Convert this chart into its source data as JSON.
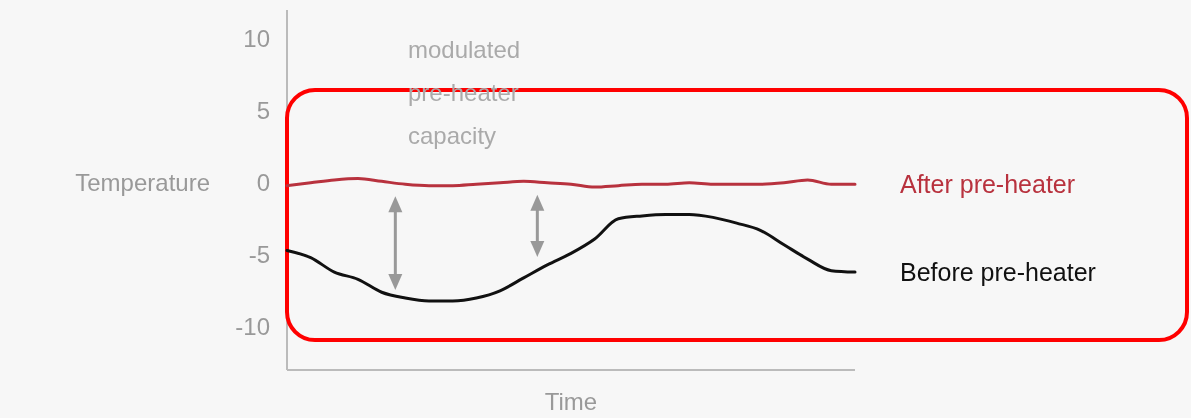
{
  "chart_data": {
    "type": "line",
    "xlabel": "Time",
    "ylabel": "Temperature",
    "annotations": [
      "modulated pre-heater capacity"
    ],
    "categories": [
      null,
      null,
      null,
      null,
      null,
      null,
      null,
      null,
      null,
      null,
      null,
      null,
      null,
      null,
      null,
      null,
      null,
      null,
      null,
      null,
      null,
      null,
      null,
      null,
      null
    ],
    "ylim": [
      -13,
      12
    ],
    "yticks": [
      -10,
      -5,
      0,
      5,
      10
    ],
    "grid": false,
    "legend": false,
    "marker": "none",
    "line_style": "solid",
    "series": [
      {
        "name": "After pre-heater",
        "color": "#b8323e",
        "values": [
          -0.2,
          0,
          0.2,
          0.3,
          0.1,
          -0.1,
          -0.2,
          -0.2,
          -0.1,
          0,
          0.1,
          0,
          -0.1,
          -0.3,
          -0.2,
          -0.1,
          -0.1,
          0,
          -0.1,
          -0.1,
          -0.1,
          0,
          0.2,
          -0.1,
          -0.1
        ]
      },
      {
        "name": "Before pre-heater",
        "color": "#111111",
        "values": [
          -4.7,
          -5.2,
          -6.2,
          -6.7,
          -7.6,
          -8,
          -8.2,
          -8.2,
          -8,
          -7.5,
          -6.6,
          -5.7,
          -4.9,
          -3.9,
          -2.5,
          -2.3,
          -2.2,
          -2.2,
          -2.4,
          -2.8,
          -3.3,
          -4.3,
          -5.3,
          -6.1,
          -6.2
        ]
      }
    ]
  }
}
